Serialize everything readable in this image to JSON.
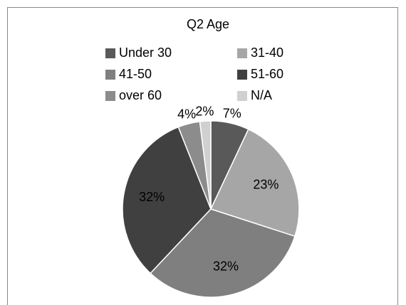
{
  "chart_data": {
    "type": "pie",
    "title": "Q2 Age",
    "categories": [
      "Under 30",
      "31-40",
      "41-50",
      "51-60",
      "over 60",
      "N/A"
    ],
    "values": [
      7,
      23,
      32,
      32,
      4,
      2
    ],
    "value_labels": [
      "7%",
      "23%",
      "32%",
      "32%",
      "4%",
      "2%"
    ],
    "colors": [
      "#595959",
      "#a6a6a6",
      "#7f7f7f",
      "#404040",
      "#8c8c8c",
      "#d0d0d0"
    ],
    "legend": "top"
  }
}
